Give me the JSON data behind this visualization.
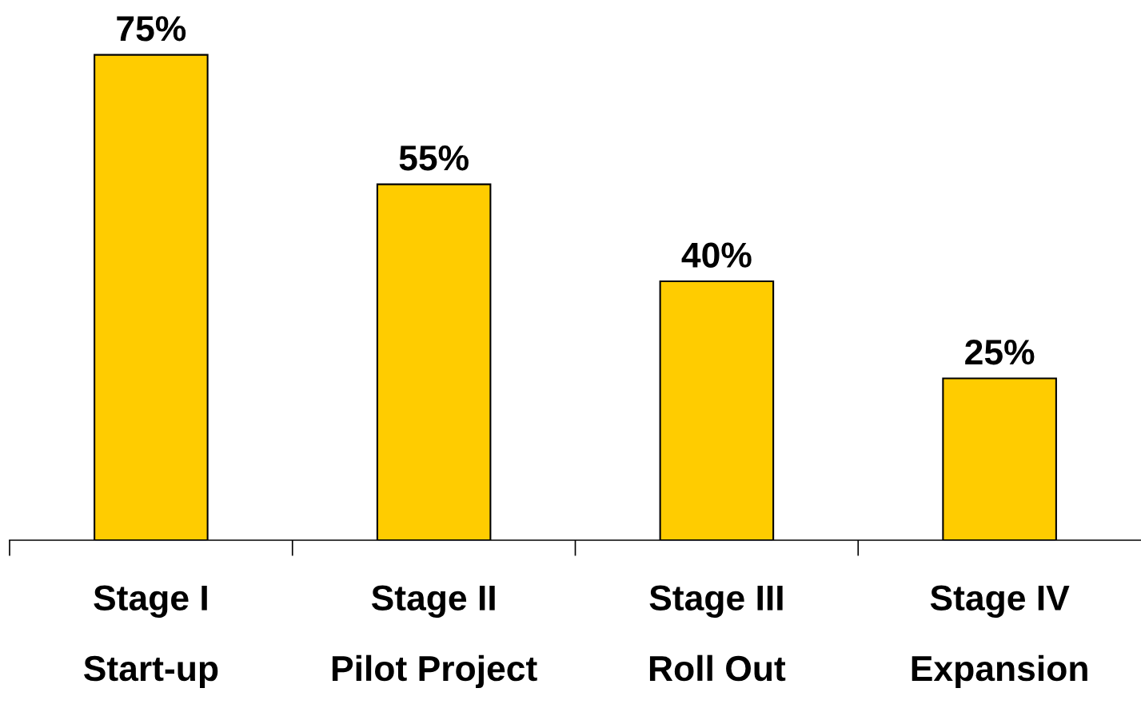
{
  "chart_data": {
    "type": "bar",
    "categories": [
      "Stage I\nStart-up",
      "Stage II\nPilot Project",
      "Stage III\nRoll Out",
      "Stage IV\nExpansion"
    ],
    "values": [
      75,
      55,
      40,
      25
    ],
    "value_labels": [
      "75%",
      "55%",
      "40%",
      "25%"
    ],
    "color": "#ffcc00",
    "grid": false,
    "legend": false
  }
}
